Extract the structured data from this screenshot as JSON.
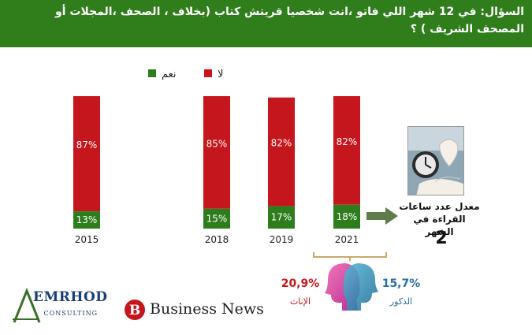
{
  "header": {
    "line1": "السؤال: في 12 شهر اللي فاتو ،انت شخصيا قريتش كتاب (بخلاف ، الصحف ،المجلات أو",
    "line2": "المصحف الشريف ) ؟"
  },
  "colors": {
    "header_bg": "#2f7d1b",
    "no": "#c4161c",
    "yes": "#2e7d1c",
    "female": "#c4161c",
    "male": "#2a6ea0",
    "arrow": "#5f7d4a"
  },
  "chart_data": {
    "type": "bar",
    "stacked": true,
    "categories": [
      "2015",
      "2018",
      "2019",
      "2021"
    ],
    "series": [
      {
        "name": "نعم",
        "values": [
          13,
          15,
          17,
          18
        ],
        "labels": [
          "13%",
          "15%",
          "17%",
          "18%"
        ],
        "color": "#2e7d1c"
      },
      {
        "name": "لا",
        "values": [
          87,
          85,
          82,
          82
        ],
        "labels": [
          "87%",
          "85%",
          "82%",
          "82%"
        ],
        "color": "#c4161c"
      }
    ],
    "legend": {
      "position": "top"
    },
    "ylim": [
      0,
      100
    ],
    "grid": false
  },
  "side_info": {
    "label": "معدل عدد ساعات القراءة في الشهر",
    "value": "2",
    "image_icon": "book-clock-image"
  },
  "gender": {
    "female_percent": "20,9%",
    "female_label": "الإناث",
    "male_percent": "15,7%",
    "male_label": "الذكور",
    "icon": "female-male-heads-icon"
  },
  "logos": {
    "emrhod_name": "EMRHOD",
    "emrhod_sub": "CONSULTING",
    "business_news_mark": "B",
    "business_news_text": "Business News"
  }
}
